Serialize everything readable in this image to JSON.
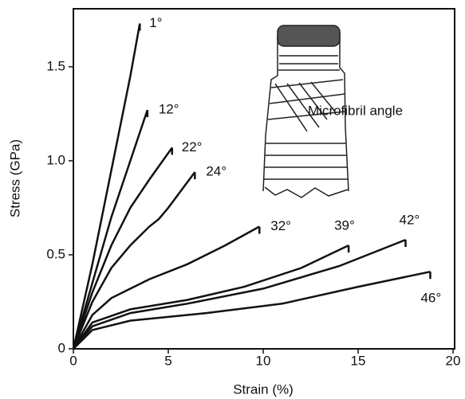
{
  "chart_data": {
    "type": "line",
    "x_label": "Strain (%)",
    "y_label": "Stress (GPa)",
    "xlim": [
      0,
      20
    ],
    "ylim": [
      0,
      1.8
    ],
    "xticks": [
      0,
      5,
      10,
      15,
      20
    ],
    "yticks": [
      0,
      0.5,
      {
        "value": 1,
        "label": "1.0"
      },
      1.5
    ],
    "annotation": "Microfibril angle",
    "series": [
      {
        "name": "1°",
        "color": "#111111",
        "x": [
          0,
          1,
          2,
          3,
          3.5
        ],
        "values": [
          0,
          0.45,
          0.95,
          1.45,
          1.73
        ]
      },
      {
        "name": "12°",
        "color": "#111111",
        "x": [
          0,
          1,
          2,
          3,
          3.9
        ],
        "values": [
          0,
          0.35,
          0.7,
          1.0,
          1.27
        ]
      },
      {
        "name": "22°",
        "color": "#111111",
        "x": [
          0,
          1,
          2,
          3,
          4,
          5.2
        ],
        "values": [
          0,
          0.3,
          0.55,
          0.75,
          0.9,
          1.07
        ]
      },
      {
        "name": "24°",
        "color": "#111111",
        "x": [
          0,
          1,
          2,
          3,
          4,
          4.5,
          5,
          6.4
        ],
        "values": [
          0,
          0.25,
          0.43,
          0.55,
          0.65,
          0.69,
          0.75,
          0.94
        ]
      },
      {
        "name": "32°",
        "color": "#111111",
        "x": [
          0,
          1,
          2,
          4,
          6,
          8,
          9.8
        ],
        "values": [
          0,
          0.18,
          0.27,
          0.37,
          0.45,
          0.55,
          0.65
        ]
      },
      {
        "name": "39°",
        "color": "#111111",
        "x": [
          0,
          1,
          3,
          6,
          9,
          12,
          14.5
        ],
        "values": [
          0,
          0.14,
          0.21,
          0.26,
          0.33,
          0.43,
          0.55
        ]
      },
      {
        "name": "42°",
        "color": "#111111",
        "x": [
          0,
          1,
          3,
          6,
          10,
          14,
          17.5
        ],
        "values": [
          0,
          0.12,
          0.19,
          0.24,
          0.32,
          0.44,
          0.58
        ]
      },
      {
        "name": "46°",
        "color": "#111111",
        "x": [
          0,
          1,
          3,
          7,
          11,
          15,
          18.8
        ],
        "values": [
          0,
          0.1,
          0.15,
          0.19,
          0.24,
          0.33,
          0.41
        ]
      }
    ]
  }
}
